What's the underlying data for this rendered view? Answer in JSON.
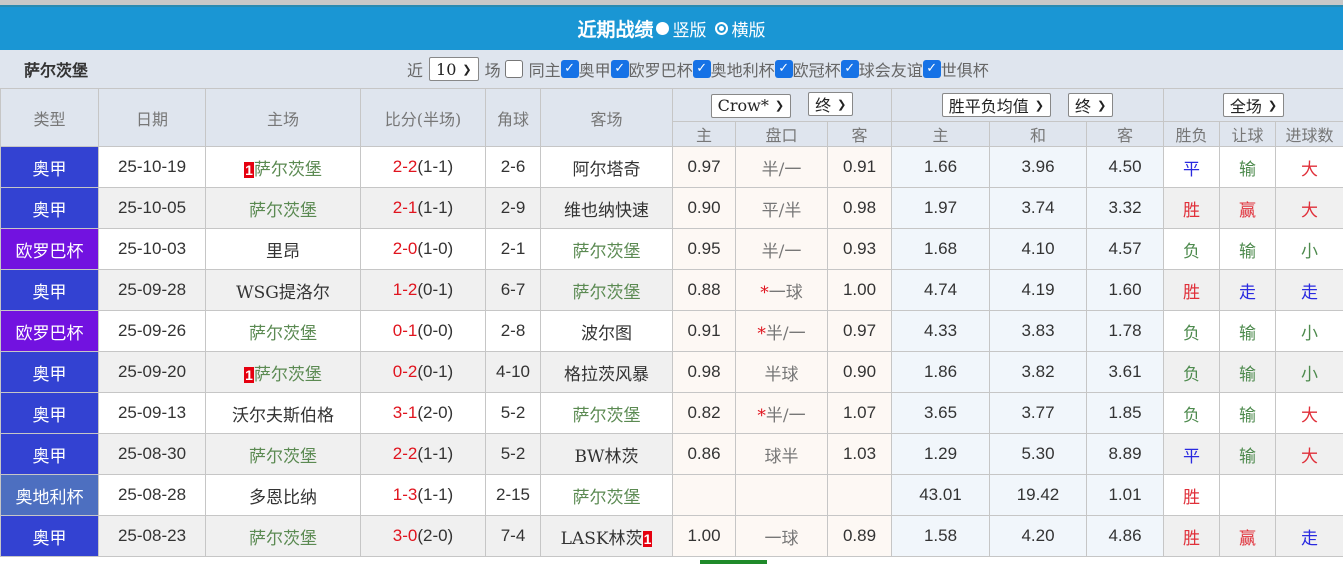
{
  "title": {
    "text": "近期战绩",
    "option_vertical": "竖版",
    "option_horizontal": "横版"
  },
  "filter": {
    "team": "萨尔茨堡",
    "recent_prefix": "近",
    "recent_count": "10",
    "recent_suffix": "场",
    "same_home": "同主",
    "same_home_checked": false,
    "leagues": [
      {
        "label": "奥甲",
        "checked": true
      },
      {
        "label": "欧罗巴杯",
        "checked": true
      },
      {
        "label": "奥地利杯",
        "checked": true
      },
      {
        "label": "欧冠杯",
        "checked": true
      },
      {
        "label": "球会友谊",
        "checked": true
      },
      {
        "label": "世俱杯",
        "checked": true
      }
    ]
  },
  "header": {
    "type": "类型",
    "date": "日期",
    "home": "主场",
    "score": "比分(半场)",
    "corners": "角球",
    "away": "客场",
    "ah_company": "Crow*",
    "ah_stage": "终",
    "eu_company": "胜平负均值",
    "eu_stage": "终",
    "period": "全场",
    "sub": [
      "主",
      "盘口",
      "客",
      "主",
      "和",
      "客",
      "胜负",
      "让球",
      "进球数"
    ]
  },
  "colors": {
    "title_bar": "#1a96d4",
    "league_aojia": "#3342d2",
    "league_europa": "#7212e0",
    "league_cup": "#4d6fc0",
    "win": "#e0303a",
    "draw": "#2a2ae0",
    "loss": "#4d8a4d"
  },
  "rows": [
    {
      "type": "奥甲",
      "date": "25-10-19",
      "home": "萨尔茨堡",
      "home_card": "1",
      "home_ours": true,
      "score": "2-2",
      "ht": "(1-1)",
      "corners": "2-6",
      "away": "阿尔塔奇",
      "away_card": "",
      "away_ours": false,
      "ah_h": "0.97",
      "ah_line": "半/一",
      "ah_star": false,
      "ah_a": "0.91",
      "eu_h": "1.66",
      "eu_d": "3.96",
      "eu_a": "4.50",
      "res": "平",
      "ah_res": "输",
      "ou_res": "大"
    },
    {
      "type": "奥甲",
      "date": "25-10-05",
      "home": "萨尔茨堡",
      "home_card": "",
      "home_ours": true,
      "score": "2-1",
      "ht": "(1-1)",
      "corners": "2-9",
      "away": "维也纳快速",
      "away_card": "",
      "away_ours": false,
      "ah_h": "0.90",
      "ah_line": "平/半",
      "ah_star": false,
      "ah_a": "0.98",
      "eu_h": "1.97",
      "eu_d": "3.74",
      "eu_a": "3.32",
      "res": "胜",
      "ah_res": "赢",
      "ou_res": "大"
    },
    {
      "type": "欧罗巴杯",
      "date": "25-10-03",
      "home": "里昂",
      "home_card": "",
      "home_ours": false,
      "score": "2-0",
      "ht": "(1-0)",
      "corners": "2-1",
      "away": "萨尔茨堡",
      "away_card": "",
      "away_ours": true,
      "ah_h": "0.95",
      "ah_line": "半/一",
      "ah_star": false,
      "ah_a": "0.93",
      "eu_h": "1.68",
      "eu_d": "4.10",
      "eu_a": "4.57",
      "res": "负",
      "ah_res": "输",
      "ou_res": "小"
    },
    {
      "type": "奥甲",
      "date": "25-09-28",
      "home": "WSG提洛尔",
      "home_card": "",
      "home_ours": false,
      "score": "1-2",
      "ht": "(0-1)",
      "corners": "6-7",
      "away": "萨尔茨堡",
      "away_card": "",
      "away_ours": true,
      "ah_h": "0.88",
      "ah_line": "一球",
      "ah_star": true,
      "ah_a": "1.00",
      "eu_h": "4.74",
      "eu_d": "4.19",
      "eu_a": "1.60",
      "res": "胜",
      "ah_res": "走",
      "ou_res": "走"
    },
    {
      "type": "欧罗巴杯",
      "date": "25-09-26",
      "home": "萨尔茨堡",
      "home_card": "",
      "home_ours": true,
      "score": "0-1",
      "ht": "(0-0)",
      "corners": "2-8",
      "away": "波尔图",
      "away_card": "",
      "away_ours": false,
      "ah_h": "0.91",
      "ah_line": "半/一",
      "ah_star": true,
      "ah_a": "0.97",
      "eu_h": "4.33",
      "eu_d": "3.83",
      "eu_a": "1.78",
      "res": "负",
      "ah_res": "输",
      "ou_res": "小"
    },
    {
      "type": "奥甲",
      "date": "25-09-20",
      "home": "萨尔茨堡",
      "home_card": "1",
      "home_ours": true,
      "score": "0-2",
      "ht": "(0-1)",
      "corners": "4-10",
      "away": "格拉茨风暴",
      "away_card": "",
      "away_ours": false,
      "ah_h": "0.98",
      "ah_line": "半球",
      "ah_star": false,
      "ah_a": "0.90",
      "eu_h": "1.86",
      "eu_d": "3.82",
      "eu_a": "3.61",
      "res": "负",
      "ah_res": "输",
      "ou_res": "小"
    },
    {
      "type": "奥甲",
      "date": "25-09-13",
      "home": "沃尔夫斯伯格",
      "home_card": "",
      "home_ours": false,
      "score": "3-1",
      "ht": "(2-0)",
      "corners": "5-2",
      "away": "萨尔茨堡",
      "away_card": "",
      "away_ours": true,
      "ah_h": "0.82",
      "ah_line": "半/一",
      "ah_star": true,
      "ah_a": "1.07",
      "eu_h": "3.65",
      "eu_d": "3.77",
      "eu_a": "1.85",
      "res": "负",
      "ah_res": "输",
      "ou_res": "大"
    },
    {
      "type": "奥甲",
      "date": "25-08-30",
      "home": "萨尔茨堡",
      "home_card": "",
      "home_ours": true,
      "score": "2-2",
      "ht": "(1-1)",
      "corners": "5-2",
      "away": "BW林茨",
      "away_card": "",
      "away_ours": false,
      "ah_h": "0.86",
      "ah_line": "球半",
      "ah_star": false,
      "ah_a": "1.03",
      "eu_h": "1.29",
      "eu_d": "5.30",
      "eu_a": "8.89",
      "res": "平",
      "ah_res": "输",
      "ou_res": "大"
    },
    {
      "type": "奥地利杯",
      "date": "25-08-28",
      "home": "多恩比纳",
      "home_card": "",
      "home_ours": false,
      "score": "1-3",
      "ht": "(1-1)",
      "corners": "2-15",
      "away": "萨尔茨堡",
      "away_card": "",
      "away_ours": true,
      "ah_h": "",
      "ah_line": "",
      "ah_star": false,
      "ah_a": "",
      "eu_h": "43.01",
      "eu_d": "19.42",
      "eu_a": "1.01",
      "res": "胜",
      "ah_res": "",
      "ou_res": ""
    },
    {
      "type": "奥甲",
      "date": "25-08-23",
      "home": "萨尔茨堡",
      "home_card": "",
      "home_ours": true,
      "score": "3-0",
      "ht": "(2-0)",
      "corners": "7-4",
      "away": "LASK林茨",
      "away_card": "1",
      "away_ours": false,
      "ah_h": "1.00",
      "ah_line": "一球",
      "ah_star": false,
      "ah_a": "0.89",
      "eu_h": "1.58",
      "eu_d": "4.20",
      "eu_a": "4.86",
      "res": "胜",
      "ah_res": "赢",
      "ou_res": "走"
    }
  ]
}
